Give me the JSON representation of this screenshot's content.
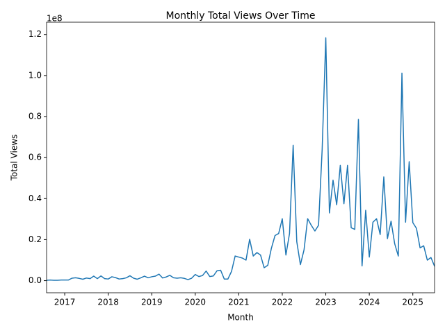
{
  "chart_data": {
    "type": "line",
    "title": "Monthly Total Views Over Time",
    "x_label": "Month",
    "y_label": "Total Views",
    "y_offset_label": "1e8",
    "x": [
      "2016-08",
      "2016-09",
      "2016-10",
      "2016-11",
      "2016-12",
      "2017-01",
      "2017-02",
      "2017-03",
      "2017-04",
      "2017-05",
      "2017-06",
      "2017-07",
      "2017-08",
      "2017-09",
      "2017-10",
      "2017-11",
      "2017-12",
      "2018-01",
      "2018-02",
      "2018-03",
      "2018-04",
      "2018-05",
      "2018-06",
      "2018-07",
      "2018-08",
      "2018-09",
      "2018-10",
      "2018-11",
      "2018-12",
      "2019-01",
      "2019-02",
      "2019-03",
      "2019-04",
      "2019-05",
      "2019-06",
      "2019-07",
      "2019-08",
      "2019-09",
      "2019-10",
      "2019-11",
      "2019-12",
      "2020-01",
      "2020-02",
      "2020-03",
      "2020-04",
      "2020-05",
      "2020-06",
      "2020-07",
      "2020-08",
      "2020-09",
      "2020-10",
      "2020-11",
      "2020-12",
      "2021-01",
      "2021-02",
      "2021-03",
      "2021-04",
      "2021-05",
      "2021-06",
      "2021-07",
      "2021-08",
      "2021-09",
      "2021-10",
      "2021-11",
      "2021-12",
      "2022-01",
      "2022-02",
      "2022-03",
      "2022-04",
      "2022-05",
      "2022-06",
      "2022-07",
      "2022-08",
      "2022-09",
      "2022-10",
      "2022-11",
      "2022-12",
      "2023-01",
      "2023-02",
      "2023-03",
      "2023-04",
      "2023-05",
      "2023-06",
      "2023-07",
      "2023-08",
      "2023-09",
      "2023-10",
      "2023-11",
      "2023-12",
      "2024-01",
      "2024-02",
      "2024-03",
      "2024-04",
      "2024-05",
      "2024-06",
      "2024-07",
      "2024-08",
      "2024-09",
      "2024-10",
      "2024-11",
      "2024-12",
      "2025-01",
      "2025-02",
      "2025-03",
      "2025-04",
      "2025-05",
      "2025-06",
      "2025-07"
    ],
    "series": [
      {
        "name": "Total Views",
        "color": "#1f77b4",
        "values": [
          0.002,
          0.003,
          0.002,
          0.002,
          0.003,
          0.003,
          0.003,
          0.012,
          0.014,
          0.011,
          0.007,
          0.013,
          0.01,
          0.022,
          0.01,
          0.023,
          0.01,
          0.008,
          0.019,
          0.015,
          0.008,
          0.01,
          0.014,
          0.024,
          0.012,
          0.007,
          0.014,
          0.022,
          0.014,
          0.019,
          0.022,
          0.032,
          0.013,
          0.018,
          0.026,
          0.014,
          0.012,
          0.014,
          0.011,
          0.005,
          0.012,
          0.03,
          0.02,
          0.025,
          0.047,
          0.02,
          0.023,
          0.048,
          0.051,
          0.008,
          0.008,
          0.045,
          0.12,
          0.115,
          0.11,
          0.1,
          0.202,
          0.12,
          0.137,
          0.125,
          0.063,
          0.075,
          0.158,
          0.22,
          0.23,
          0.302,
          0.125,
          0.23,
          0.66,
          0.19,
          0.078,
          0.15,
          0.302,
          0.27,
          0.242,
          0.27,
          0.64,
          1.184,
          0.33,
          0.49,
          0.37,
          0.562,
          0.375,
          0.562,
          0.258,
          0.25,
          0.786,
          0.072,
          0.343,
          0.115,
          0.285,
          0.302,
          0.225,
          0.506,
          0.205,
          0.29,
          0.18,
          0.12,
          1.012,
          0.285,
          0.58,
          0.283,
          0.255,
          0.16,
          0.17,
          0.1,
          0.113,
          0.07
        ]
      }
    ],
    "xlim": [
      "2016-08",
      "2025-07"
    ],
    "xticks": [
      "2017",
      "2018",
      "2019",
      "2020",
      "2021",
      "2022",
      "2023",
      "2024",
      "2025"
    ],
    "ylim": [
      -0.059,
      1.26
    ],
    "yticks": [
      {
        "value": 0,
        "label": "0.0"
      },
      0.2,
      0.4,
      0.6,
      0.8,
      {
        "value": 1,
        "label": "1.0"
      },
      1.2
    ]
  }
}
